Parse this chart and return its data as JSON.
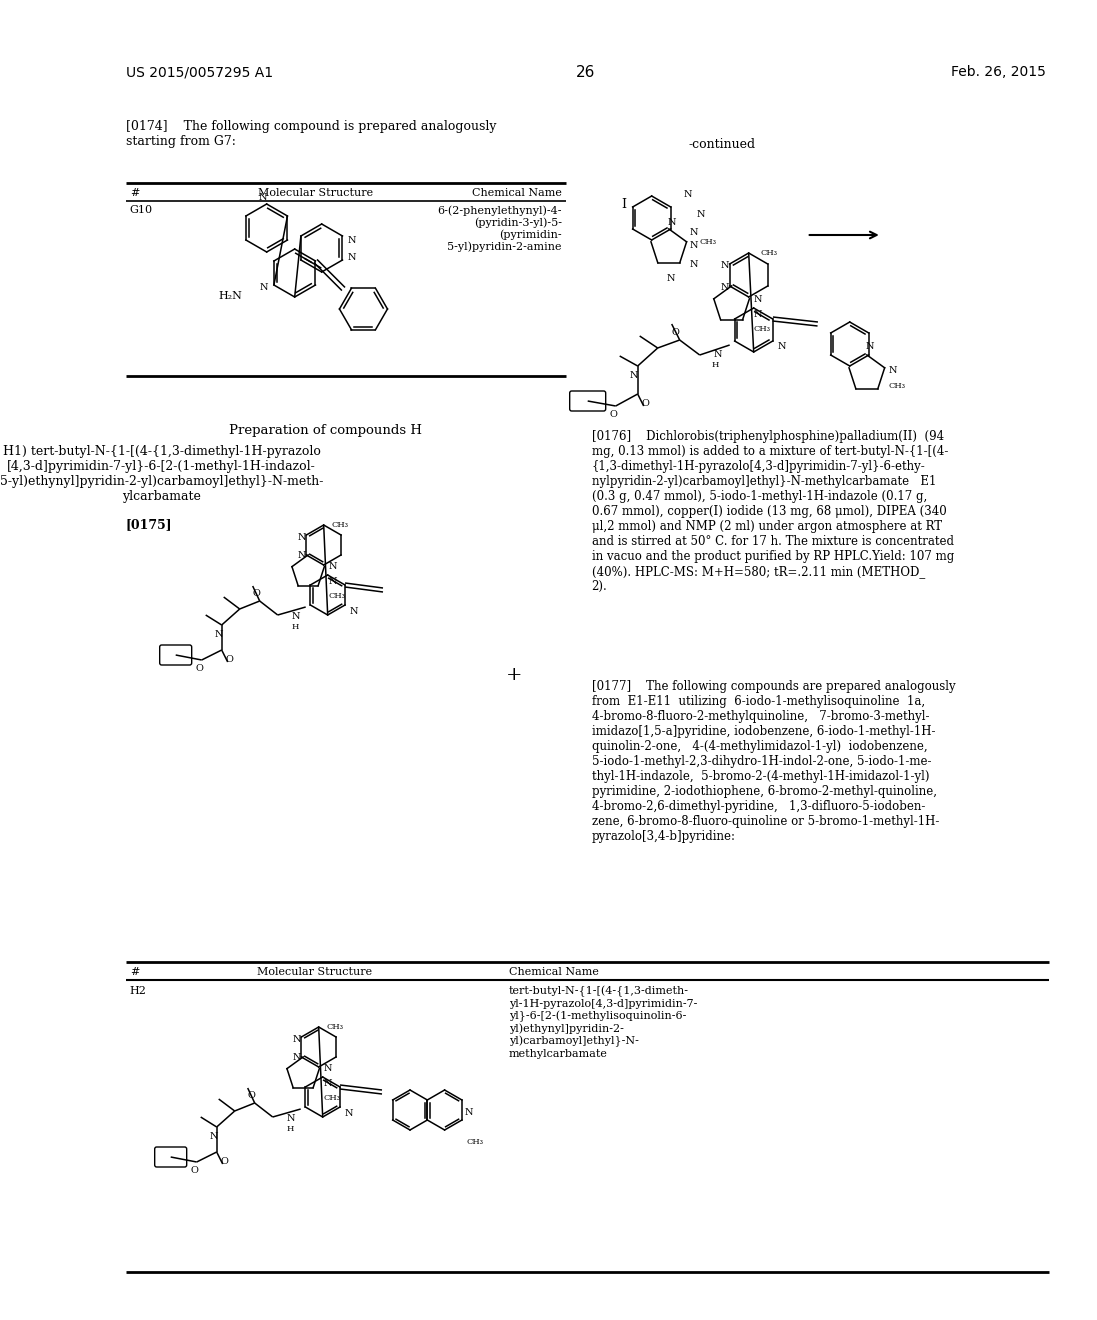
{
  "page_number": "26",
  "patent_number": "US 2015/0057295 A1",
  "date": "Feb. 26, 2015",
  "bg_color": "#ffffff",
  "paragraph_0174": "[0174]    The following compound is prepared analogously\nstarting from G7:",
  "table1_headers": [
    "#",
    "Molecular Structure",
    "Chemical Name"
  ],
  "table1_row_label": "G10",
  "table1_chem_name": "6-(2-phenylethynyl)-4-\n(pyridin-3-yl)-5-\n(pyrimidin-\n5-yl)pyridin-2-amine",
  "section_header": "Preparation of compounds H",
  "H1_text": "H1) tert-butyl-N-{1-[(4-{1,3-dimethyl-1H-pyrazolo\n[4,3-d]pyrimidin-7-yl}-6-[2-(1-methyl-1H-indazol-\n5-yl)ethynyl]pyridin-2-yl)carbamoyl]ethyl}-N-meth-\nylcarbamate",
  "paragraph_0175": "[0175]",
  "paragraph_0176": "[0176]    Dichlorobis(triphenylphosphine)palladium(II)  (94\nmg, 0.13 mmol) is added to a mixture of tert-butyl-N-{1-[(4-\n{1,3-dimethyl-1H-pyrazolo[4,3-d]pyrimidin-7-yl}-6-ethy-\nnylpyridin-2-yl)carbamoyl]ethyl}-N-methylcarbamate   E1\n(0.3 g, 0.47 mmol), 5-iodo-1-methyl-1H-indazole (0.17 g,\n0.67 mmol), copper(I) iodide (13 mg, 68 μmol), DIPEA (340\nμl,2 mmol) and NMP (2 ml) under argon atmosphere at RT\nand is stirred at 50° C. for 17 h. The mixture is concentrated\nin vacuo and the product purified by RP HPLC.Yield: 107 mg\n(40%). HPLC-MS: M+H=580; tR=.2.11 min (METHOD_\n2).",
  "paragraph_0177": "[0177]    The following compounds are prepared analogously\nfrom  E1-E11  utilizing  6-iodo-1-methylisoquinoline  1a,\n4-bromo-8-fluoro-2-methylquinoline,   7-bromo-3-methyl-\nimidazo[1,5-a]pyridine, iodobenzene, 6-iodo-1-methyl-1H-\nquinolin-2-one,   4-(4-methylimidazol-1-yl)  iodobenzene,\n5-iodo-1-methyl-2,3-dihydro-1H-indol-2-one, 5-iodo-1-me-\nthyl-1H-indazole,  5-bromo-2-(4-methyl-1H-imidazol-1-yl)\npyrimidine, 2-iodothiophene, 6-bromo-2-methyl-quinoline,\n4-bromo-2,6-dimethyl-pyridine,   1,3-difluoro-5-iodoben-\nzene, 6-bromo-8-fluoro-quinoline or 5-bromo-1-methyl-1H-\npyrazolo[3,4-b]pyridine:",
  "table2_headers": [
    "#",
    "Molecular Structure",
    "Chemical Name"
  ],
  "table2_row_label": "H2",
  "table2_chem_name": "tert-butyl-N-{1-[(4-{1,3-dimeth-\nyl-1H-pyrazolo[4,3-d]pyrimidin-7-\nyl}-6-[2-(1-methylisoquinolin-6-\nyl)ethynyl]pyridin-2-\nyl)carbamoyl]ethyl}-N-\nmethylcarbamate",
  "continued_label": "-continued"
}
